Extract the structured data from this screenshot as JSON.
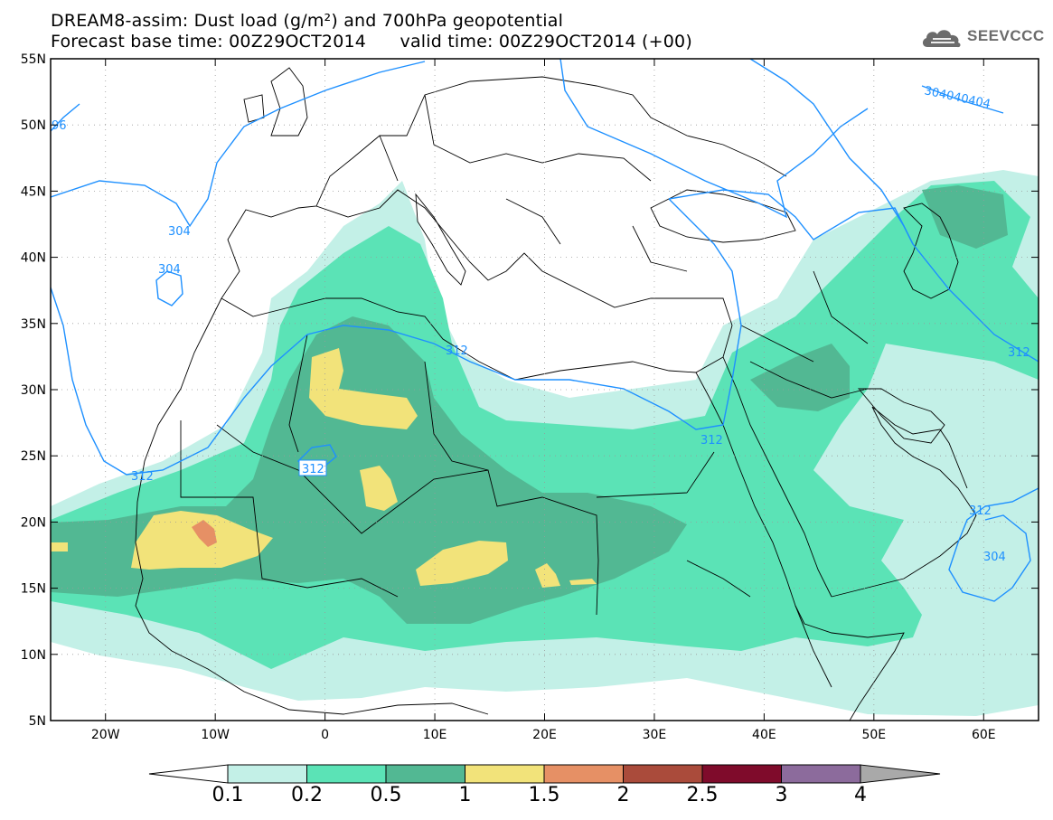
{
  "title": {
    "line1": "DREAM8-assim: Dust load (g/m²) and 700hPa geopotential",
    "line2": "Forecast base time: 00Z29OCT2014      valid time: 00Z29OCT2014 (+00)"
  },
  "logo": {
    "text": "SEEVCCC",
    "icon": "cloud-icon"
  },
  "map_data": {
    "lon_range": [
      -25,
      65
    ],
    "lat_range": [
      5,
      55
    ],
    "lon_ticks": [
      "20W",
      "10W",
      "0",
      "10E",
      "20E",
      "30E",
      "40E",
      "50E",
      "60E"
    ],
    "lat_ticks": [
      "55N",
      "50N",
      "45N",
      "40N",
      "35N",
      "30N",
      "25N",
      "20N",
      "15N",
      "10N",
      "5N"
    ],
    "contour_labels": [
      "96",
      "304",
      "304",
      "312",
      "312",
      "312",
      "312",
      "312",
      "304",
      "304040404"
    ],
    "contour_color": "#1e90ff"
  },
  "colorbar": {
    "levels": [
      "0.1",
      "0.2",
      "0.5",
      "1",
      "1.5",
      "2",
      "2.5",
      "3",
      "4"
    ],
    "colors": [
      "#c3f0e7",
      "#5be3b6",
      "#52b893",
      "#f2e37a",
      "#e69065",
      "#aa4b3b",
      "#7f0b2b",
      "#8c6b9c"
    ],
    "under_color": "#ffffff",
    "over_color": "#a9a9a9"
  }
}
